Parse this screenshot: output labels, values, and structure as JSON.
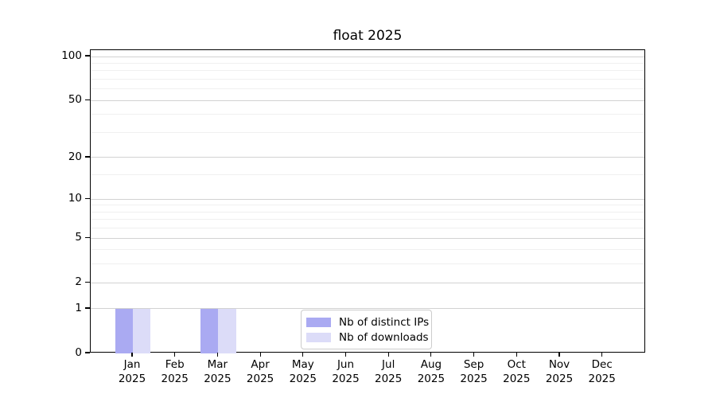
{
  "chart_data": {
    "type": "bar",
    "title": "float 2025",
    "categories": [
      "Jan",
      "Feb",
      "Mar",
      "Apr",
      "May",
      "Jun",
      "Jul",
      "Aug",
      "Sep",
      "Oct",
      "Nov",
      "Dec"
    ],
    "year_label": "2025",
    "series": [
      {
        "name": "Nb of distinct IPs",
        "color": "#aaaaf2",
        "values": [
          1,
          0,
          1,
          0,
          0,
          0,
          0,
          0,
          0,
          0,
          0,
          0
        ]
      },
      {
        "name": "Nb of downloads",
        "color": "#dcdcf8",
        "values": [
          1,
          0,
          1,
          0,
          0,
          0,
          0,
          0,
          0,
          0,
          0,
          0
        ]
      }
    ],
    "y_axis": {
      "scale": "log1p",
      "ticks": [
        0,
        1,
        2,
        5,
        10,
        20,
        50,
        100
      ],
      "minor_ticks": [
        3,
        4,
        6,
        7,
        8,
        9,
        15,
        30,
        40,
        60,
        70,
        80,
        90
      ],
      "range": [
        0,
        112
      ]
    },
    "x_axis": {
      "label_lines": 2
    },
    "grid": true,
    "legend_position": "lower center"
  }
}
